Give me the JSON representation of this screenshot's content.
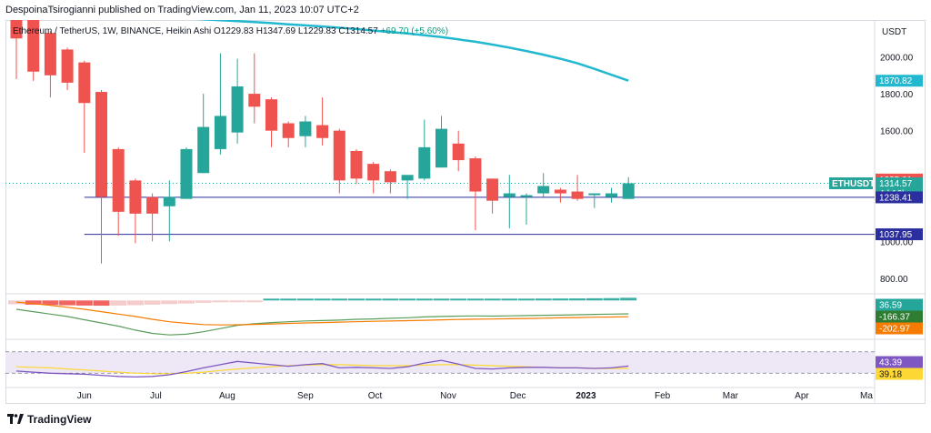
{
  "header": {
    "published_by": "DespoinaTsirogianni published on TradingView.com, Jan 11, 2023 10:07 UTC+2"
  },
  "legend": {
    "symbol": "Ethereum / TetherUS, 1W, BINANCE, Heikin Ashi",
    "open_label": "O",
    "open": "1229.83",
    "high_label": "H",
    "high": "1347.69",
    "low_label": "L",
    "low": "1229.83",
    "close_label": "C",
    "close": "1314.57",
    "change": "+69.70 (+5.60%)"
  },
  "footer": {
    "brand": "TradingView"
  },
  "colors": {
    "up": "#26a69a",
    "down": "#ef5350",
    "ma": "#22b8cf",
    "hline": "#2a2e9e",
    "macd_line": "#5b9e5b",
    "signal_line": "#f57c00",
    "rsi": "#7e57c2",
    "rsi_ma": "#fdd835",
    "rsi_band": "#ede7f6",
    "hist_up": "#26a69a",
    "hist_down_light": "#f4c7c7",
    "hist_down": "#ef5350"
  },
  "chart_data": {
    "type": "candlestick",
    "title": "Ethereum / TetherUS, 1W, BINANCE, Heikin Ashi",
    "y_axis_unit": "USDT",
    "y_ticks": [
      "2000.00",
      "1800.00",
      "1600.00",
      "1000.00",
      "800.00"
    ],
    "ylim": [
      730,
      2200
    ],
    "x_tick_labels": [
      "Jun",
      "Jul",
      "Aug",
      "Sep",
      "Oct",
      "Nov",
      "Dec",
      "2023",
      "Feb",
      "Mar",
      "Apr",
      "Ma"
    ],
    "x_tick_index": [
      4,
      8.2,
      12.4,
      17,
      21.1,
      25.4,
      29.5,
      33.5,
      38,
      42,
      46.2,
      50
    ],
    "candles": [
      {
        "o": 2250,
        "h": 2250,
        "l": 1880,
        "c": 2100
      },
      {
        "o": 2220,
        "h": 2250,
        "l": 1870,
        "c": 1920
      },
      {
        "o": 2130,
        "h": 2140,
        "l": 1780,
        "c": 1900
      },
      {
        "o": 2040,
        "h": 2050,
        "l": 1820,
        "c": 1860
      },
      {
        "o": 1970,
        "h": 1980,
        "l": 1480,
        "c": 1750
      },
      {
        "o": 1810,
        "h": 1820,
        "l": 880,
        "c": 1240
      },
      {
        "o": 1500,
        "h": 1510,
        "l": 1030,
        "c": 1160
      },
      {
        "o": 1330,
        "h": 1340,
        "l": 990,
        "c": 1150
      },
      {
        "o": 1240,
        "h": 1260,
        "l": 1000,
        "c": 1150
      },
      {
        "o": 1190,
        "h": 1330,
        "l": 1000,
        "c": 1240
      },
      {
        "o": 1230,
        "h": 1510,
        "l": 1230,
        "c": 1500
      },
      {
        "o": 1370,
        "h": 1800,
        "l": 1370,
        "c": 1620
      },
      {
        "o": 1500,
        "h": 2020,
        "l": 1470,
        "c": 1680
      },
      {
        "o": 1590,
        "h": 1990,
        "l": 1530,
        "c": 1840
      },
      {
        "o": 1800,
        "h": 2020,
        "l": 1640,
        "c": 1730
      },
      {
        "o": 1770,
        "h": 1780,
        "l": 1510,
        "c": 1600
      },
      {
        "o": 1640,
        "h": 1650,
        "l": 1510,
        "c": 1560
      },
      {
        "o": 1570,
        "h": 1680,
        "l": 1510,
        "c": 1650
      },
      {
        "o": 1630,
        "h": 1780,
        "l": 1520,
        "c": 1560
      },
      {
        "o": 1600,
        "h": 1610,
        "l": 1260,
        "c": 1330
      },
      {
        "o": 1490,
        "h": 1500,
        "l": 1310,
        "c": 1340
      },
      {
        "o": 1420,
        "h": 1430,
        "l": 1260,
        "c": 1330
      },
      {
        "o": 1380,
        "h": 1390,
        "l": 1260,
        "c": 1320
      },
      {
        "o": 1330,
        "h": 1350,
        "l": 1230,
        "c": 1360
      },
      {
        "o": 1340,
        "h": 1660,
        "l": 1330,
        "c": 1510
      },
      {
        "o": 1400,
        "h": 1680,
        "l": 1400,
        "c": 1610
      },
      {
        "o": 1530,
        "h": 1600,
        "l": 1380,
        "c": 1440
      },
      {
        "o": 1450,
        "h": 1460,
        "l": 1060,
        "c": 1270
      },
      {
        "o": 1340,
        "h": 1340,
        "l": 1150,
        "c": 1220
      },
      {
        "o": 1240,
        "h": 1360,
        "l": 1070,
        "c": 1260
      },
      {
        "o": 1240,
        "h": 1260,
        "l": 1090,
        "c": 1250
      },
      {
        "o": 1260,
        "h": 1370,
        "l": 1240,
        "c": 1300
      },
      {
        "o": 1280,
        "h": 1290,
        "l": 1210,
        "c": 1260
      },
      {
        "o": 1270,
        "h": 1360,
        "l": 1220,
        "c": 1230
      },
      {
        "o": 1250,
        "h": 1260,
        "l": 1180,
        "c": 1260
      },
      {
        "o": 1240,
        "h": 1290,
        "l": 1210,
        "c": 1260
      },
      {
        "o": 1229.83,
        "h": 1347.69,
        "l": 1229.83,
        "c": 1314.57
      }
    ],
    "moving_average": {
      "color": "#22b8cf",
      "values": [
        2280,
        2270,
        2262,
        2253,
        2245,
        2238,
        2231,
        2225,
        2219,
        2214,
        2209,
        2204,
        2199,
        2194,
        2189,
        2183,
        2177,
        2171,
        2165,
        2158,
        2151,
        2143,
        2135,
        2127,
        2117,
        2108,
        2095,
        2082,
        2067,
        2050,
        2032,
        2012,
        1990,
        1965,
        1935,
        1903,
        1870.82
      ]
    },
    "horizontal_levels": [
      {
        "value": 1238.41,
        "label": "1238.41"
      },
      {
        "value": 1037.95,
        "label": "1037.95"
      }
    ],
    "price_labels": {
      "ma": "1870.82",
      "high_marker": "1335.01",
      "last": "1314.57",
      "countdown": "4d 16h",
      "symbol": "ETHUSDT"
    },
    "macd": {
      "histogram": [
        -52,
        -58,
        -62,
        -66,
        -70,
        -72,
        -70,
        -65,
        -58,
        -50,
        -42,
        -32,
        -22,
        -12,
        -4,
        4,
        10,
        14,
        16,
        18,
        20,
        20,
        20,
        19,
        20,
        22,
        24,
        25,
        24,
        24,
        25,
        26,
        27,
        28,
        30,
        32,
        36.59
      ],
      "macd": [
        -110,
        -140,
        -170,
        -200,
        -240,
        -280,
        -320,
        -370,
        -410,
        -430,
        -420,
        -390,
        -350,
        -310,
        -290,
        -275,
        -265,
        -255,
        -250,
        -245,
        -235,
        -230,
        -222,
        -215,
        -205,
        -200,
        -195,
        -193,
        -195,
        -192,
        -188,
        -185,
        -182,
        -178,
        -174,
        -170,
        -166.37
      ],
      "signal": [
        -20,
        -40,
        -60,
        -85,
        -110,
        -140,
        -170,
        -200,
        -235,
        -265,
        -285,
        -300,
        -305,
        -303,
        -298,
        -292,
        -286,
        -280,
        -275,
        -270,
        -265,
        -260,
        -256,
        -252,
        -247,
        -242,
        -237,
        -234,
        -231,
        -228,
        -225,
        -221,
        -217,
        -213,
        -209,
        -206,
        -202.97
      ],
      "labels": [
        "36.59",
        "-166.37",
        "-202.97"
      ]
    },
    "rsi": {
      "values": [
        34,
        32,
        30,
        29,
        28,
        26,
        24,
        23,
        24,
        27,
        33,
        40,
        46,
        52,
        49,
        46,
        43,
        46,
        48,
        40,
        41,
        40,
        39,
        42,
        49,
        54,
        47,
        39,
        38,
        40,
        41,
        41,
        40,
        40,
        39,
        40,
        43.39
      ],
      "ma": [
        42,
        41,
        40,
        38,
        36,
        34,
        32,
        30,
        29,
        29,
        30,
        32,
        35,
        38,
        40,
        42,
        44,
        45,
        46,
        46,
        45,
        44,
        44,
        44,
        45,
        46,
        46,
        45,
        44,
        43,
        42,
        41,
        40,
        40,
        39,
        39,
        39.18
      ],
      "labels": [
        "43.39",
        "39.18"
      ]
    }
  }
}
